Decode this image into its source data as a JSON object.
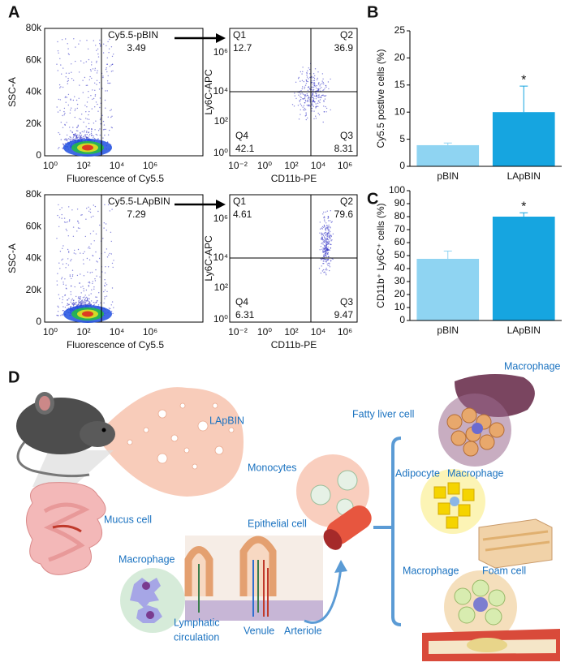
{
  "panel_labels": [
    "A",
    "B",
    "C",
    "D"
  ],
  "flow_plots": [
    {
      "gate_label": "Cy5.5-pBIN",
      "gate_value": 3.49,
      "x_label": "Fluorescence of Cy5.5",
      "y_label": "SSC-A"
    },
    {
      "gate_label": "Cy5.5-LApBIN",
      "gate_value": 7.29,
      "x_label": "Fluorescence of Cy5.5",
      "y_label": "SSC-A"
    }
  ],
  "flow_axes": {
    "ssc_ticks": [
      "0",
      "20k",
      "40k",
      "60k",
      "80k"
    ],
    "fluor_ticks": [
      "10⁰",
      "10²",
      "10⁴",
      "10⁶"
    ],
    "cd11b_ticks": [
      "10⁻²",
      "10⁰",
      "10²",
      "10⁴",
      "10⁶"
    ],
    "ly6c_ticks": [
      "10⁰",
      "10²",
      "10⁴",
      "10⁶"
    ]
  },
  "quadrant_plots": [
    {
      "x_label": "CD11b-PE",
      "y_label": "Ly6C-APC",
      "quadrants": [
        {
          "name": "Q1",
          "value": 12.7
        },
        {
          "name": "Q2",
          "value": 36.9
        },
        {
          "name": "Q3",
          "value": 8.31
        },
        {
          "name": "Q4",
          "value": 42.1
        }
      ]
    },
    {
      "x_label": "CD11b-PE",
      "y_label": "Ly6C-APC",
      "quadrants": [
        {
          "name": "Q1",
          "value": 4.61
        },
        {
          "name": "Q2",
          "value": 79.6
        },
        {
          "name": "Q3",
          "value": 9.47
        },
        {
          "name": "Q4",
          "value": 6.31
        }
      ]
    }
  ],
  "chart_data": [
    {
      "type": "bar",
      "y_label": "Cy5.5 postive cells (%)",
      "categories": [
        "pBIN",
        "LApBIN"
      ],
      "values": [
        3.9,
        10.0
      ],
      "errors": [
        0.4,
        4.8
      ],
      "colors": [
        "#8fd4f2",
        "#16a5e0"
      ],
      "ylim": [
        0,
        25
      ],
      "yticks": [
        0,
        5,
        10,
        15,
        20,
        25
      ],
      "annotation": "*"
    },
    {
      "type": "bar",
      "y_label": "CD11b⁺ Ly6C⁺ cells (%)",
      "categories": [
        "pBIN",
        "LApBIN"
      ],
      "values": [
        47.5,
        80
      ],
      "errors": [
        6,
        3
      ],
      "colors": [
        "#8fd4f2",
        "#16a5e0"
      ],
      "ylim": [
        0,
        100
      ],
      "yticks": [
        0,
        10,
        20,
        30,
        40,
        50,
        60,
        70,
        80,
        90,
        100
      ],
      "annotation": "*"
    }
  ],
  "diagram": {
    "labels": [
      "LApBIN",
      "Monocytes",
      "Mucus cell",
      "Epithelial cell",
      "Macrophage",
      "Venule",
      "Arteriole",
      "Fatty liver cell",
      "Macrophage",
      "Adipocyte",
      "Macrophage",
      "Macrophage",
      "Foam cell"
    ],
    "lymphatic": [
      "Lymphatic",
      "circulation"
    ]
  }
}
